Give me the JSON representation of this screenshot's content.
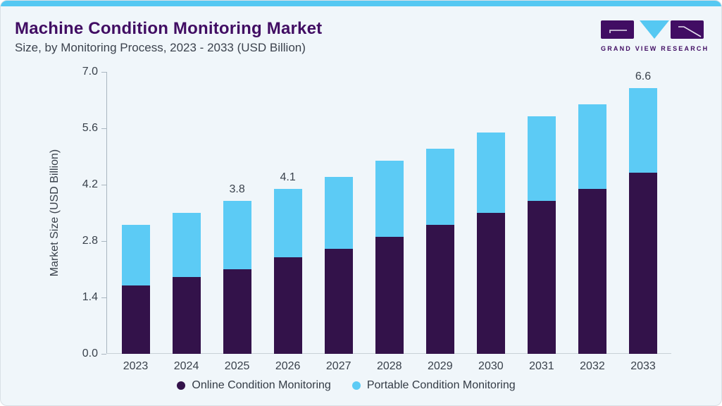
{
  "header": {
    "title": "Machine Condition Monitoring Market",
    "subtitle": "Size, by Monitoring Process, 2023 - 2033 (USD Billion)",
    "logo_text": "GRAND VIEW RESEARCH"
  },
  "colors": {
    "accent_blue": "#55c8f2",
    "brand_purple": "#410d63",
    "online_bar": "#33124a",
    "portable_bar": "#5ccbf5",
    "text_dark": "#39414b",
    "card_background": "#f0f6fa"
  },
  "chart_data": {
    "type": "bar",
    "stacked": true,
    "title": "Machine Condition Monitoring Market Size, by Monitoring Process, 2023 - 2033 (USD Billion)",
    "categories": [
      "2023",
      "2024",
      "2025",
      "2026",
      "2027",
      "2028",
      "2029",
      "2030",
      "2031",
      "2032",
      "2033"
    ],
    "series": [
      {
        "name": "Online Condition Monitoring",
        "color": "#33124a",
        "values": [
          1.7,
          1.9,
          2.1,
          2.4,
          2.6,
          2.9,
          3.2,
          3.5,
          3.8,
          4.1,
          4.5
        ]
      },
      {
        "name": "Portable Condition Monitoring",
        "color": "#5ccbf5",
        "values": [
          1.5,
          1.6,
          1.7,
          1.7,
          1.8,
          1.9,
          1.9,
          2.0,
          2.1,
          2.1,
          2.1
        ]
      }
    ],
    "totals": [
      3.2,
      3.5,
      3.8,
      4.1,
      4.4,
      4.8,
      5.1,
      5.5,
      5.9,
      6.2,
      6.6
    ],
    "total_labels": [
      "",
      "",
      "3.8",
      "4.1",
      "",
      "",
      "",
      "",
      "",
      "",
      "6.6"
    ],
    "xlabel": "",
    "ylabel": "Market Size (USD Billion)",
    "ytick_labels": [
      "0.0",
      "1.4",
      "2.8",
      "4.2",
      "5.6",
      "7.0"
    ],
    "ylim": [
      0,
      7.0
    ],
    "grid": false,
    "legend_position": "bottom"
  }
}
